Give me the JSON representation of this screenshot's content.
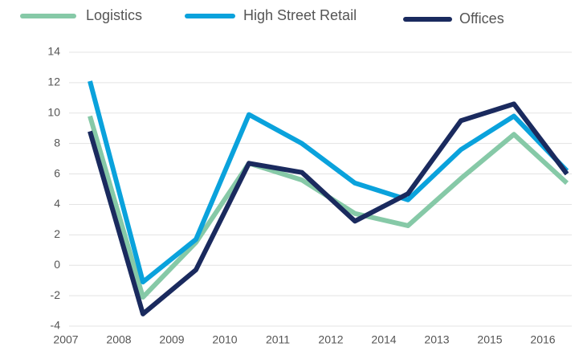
{
  "chart_data": {
    "type": "line",
    "categories": [
      "2007",
      "2008",
      "2009",
      "2010",
      "2011",
      "2012",
      "2014",
      "2013",
      "2015",
      "2016"
    ],
    "series": [
      {
        "name": "Logistics",
        "color": "#86c9a7",
        "values": [
          9.8,
          -2.1,
          1.5,
          6.7,
          5.6,
          3.4,
          2.6,
          5.7,
          8.6,
          5.4
        ]
      },
      {
        "name": "High Street Retail",
        "color": "#0aa2dc",
        "values": [
          12.1,
          -1.1,
          1.7,
          9.9,
          8.0,
          5.4,
          4.3,
          7.6,
          9.8,
          6.2
        ]
      },
      {
        "name": "Offices",
        "color": "#1a2a5e",
        "values": [
          8.8,
          -3.2,
          -0.3,
          6.7,
          6.1,
          2.9,
          4.7,
          9.5,
          10.6,
          6.0
        ]
      }
    ],
    "ylim": [
      -4,
      14
    ],
    "yticks": [
      -4,
      -2,
      0,
      2,
      4,
      6,
      8,
      10,
      12,
      14
    ],
    "grid": true
  }
}
